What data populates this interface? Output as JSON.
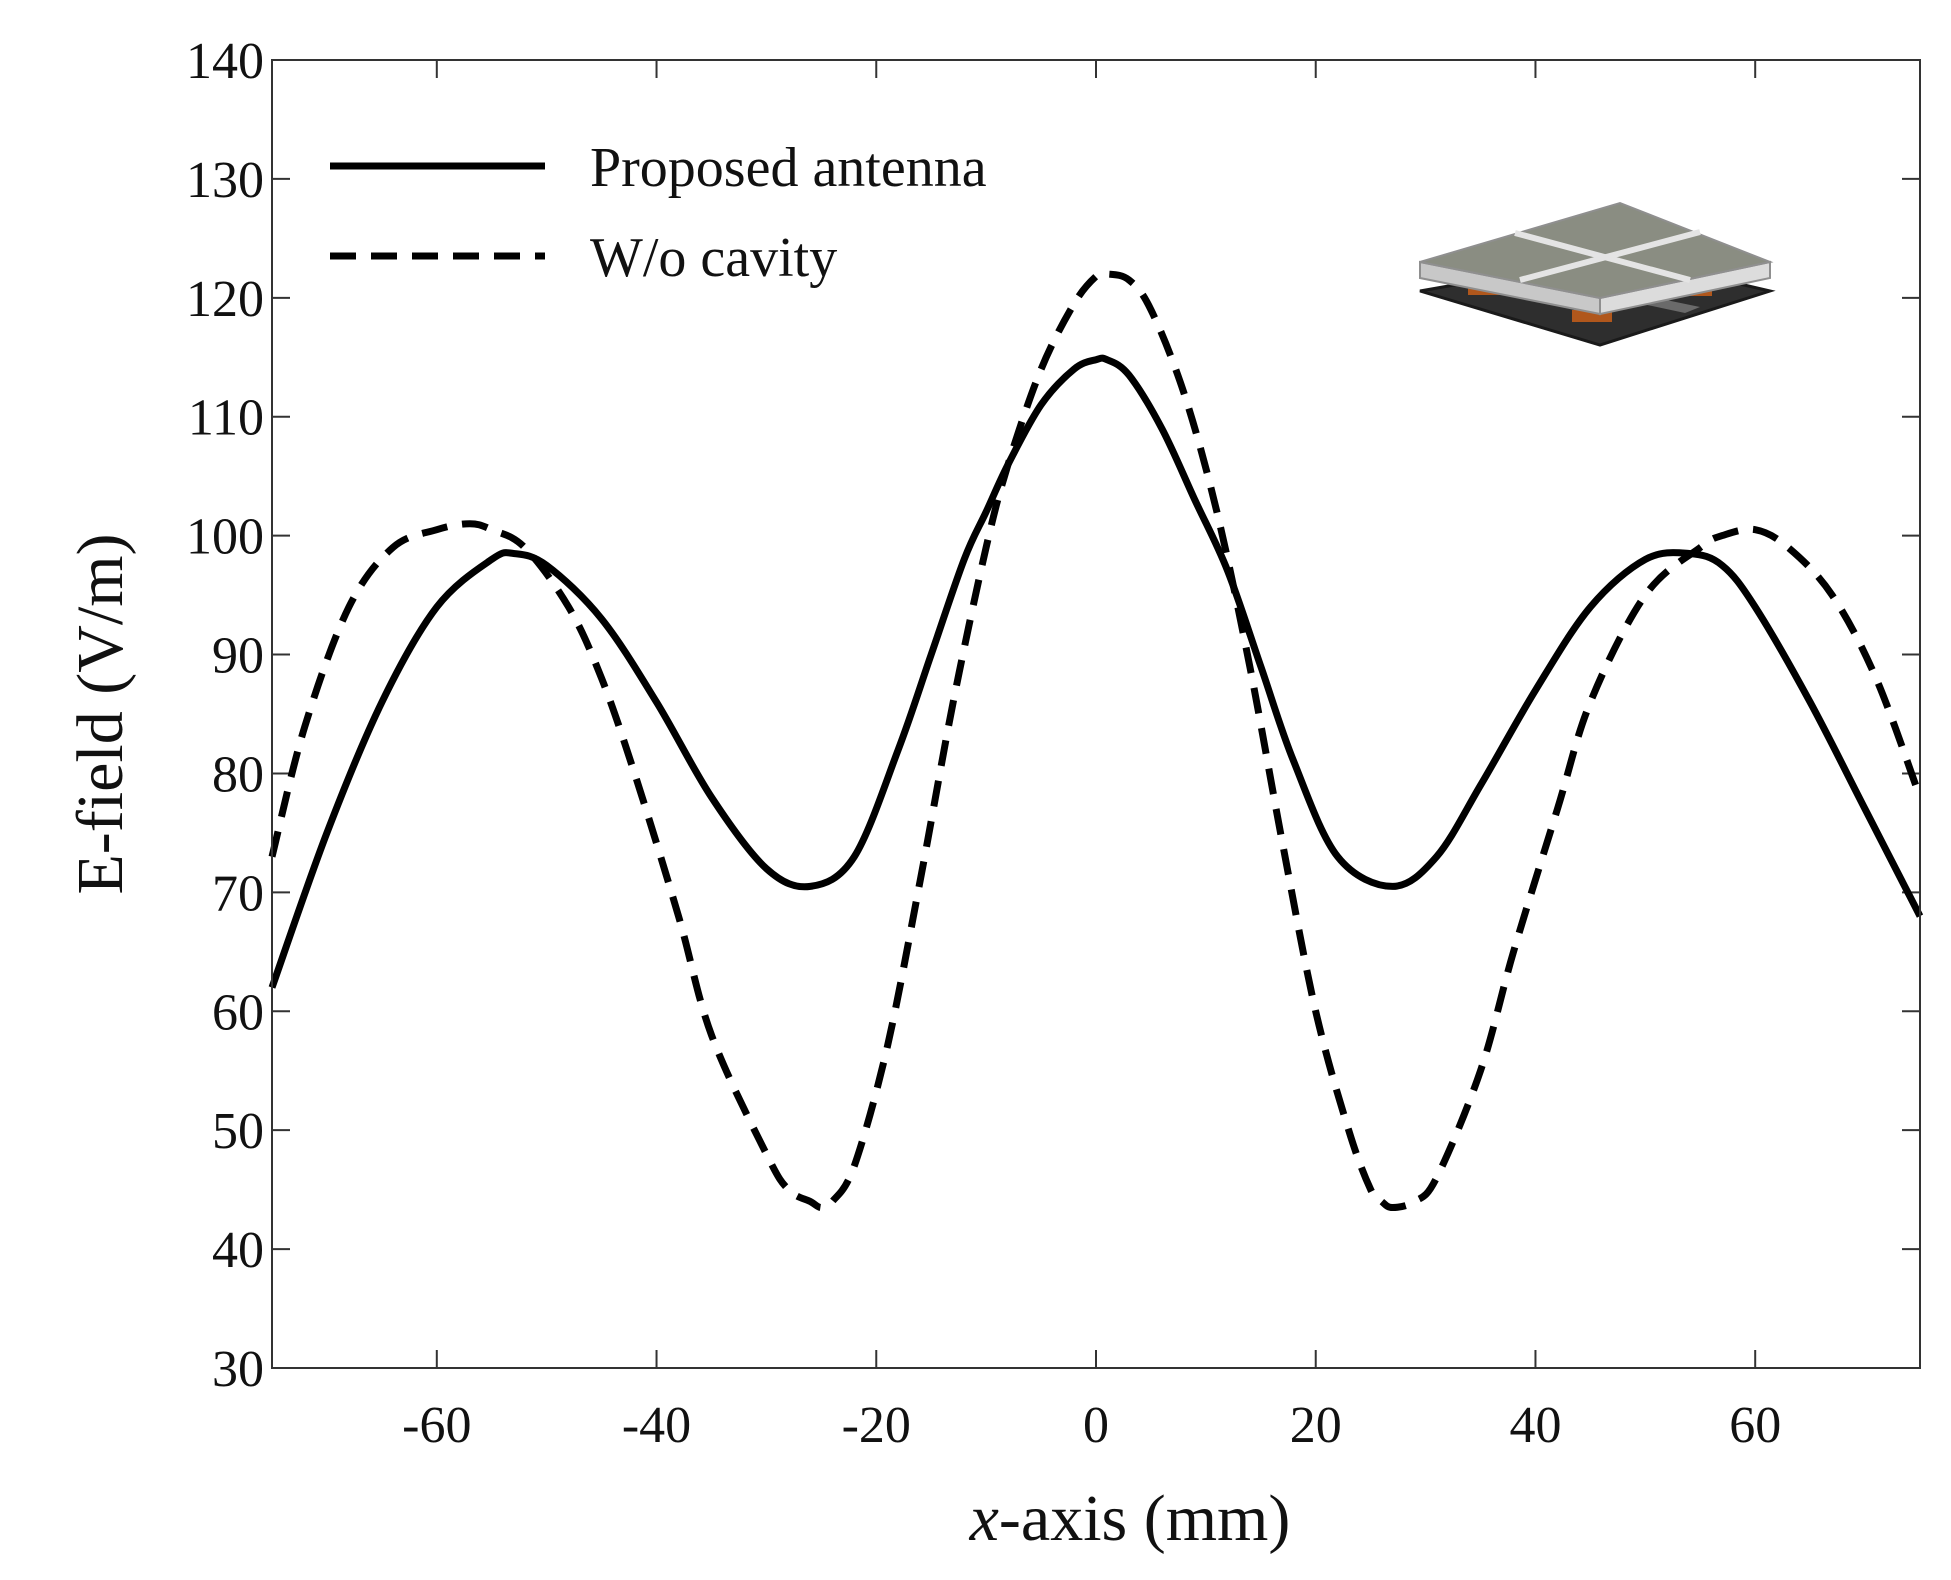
{
  "chart_data": {
    "type": "line",
    "title": "",
    "xlabel_prefix": "x",
    "xlabel_suffix": "-axis (mm)",
    "ylabel": "E-field (V/m)",
    "xlim": [
      -75,
      75
    ],
    "ylim": [
      30,
      140
    ],
    "xticks": [
      -60,
      -40,
      -20,
      0,
      20,
      40,
      60
    ],
    "yticks": [
      30,
      40,
      50,
      60,
      70,
      80,
      90,
      100,
      110,
      120,
      130,
      140
    ],
    "grid": false,
    "legend_position": "top-left",
    "series": [
      {
        "name": "Proposed antenna",
        "style": "solid",
        "color": "#000000",
        "x": [
          -75,
          -70,
          -65,
          -60,
          -55,
          -53,
          -50,
          -45,
          -40,
          -35,
          -30,
          -26,
          -22,
          -18,
          -15,
          -12,
          -10,
          -8,
          -5,
          -2,
          0,
          1,
          3,
          6,
          9,
          12,
          15,
          18,
          22,
          27,
          31,
          35,
          40,
          45,
          50,
          54,
          57,
          60,
          65,
          70,
          75
        ],
        "y": [
          62,
          75,
          86,
          94,
          98,
          98.5,
          97.5,
          93,
          86,
          78,
          72,
          70.5,
          73,
          82,
          90,
          98,
          102,
          106,
          111,
          114,
          114.8,
          114.8,
          113.5,
          109,
          103,
          97,
          89,
          81,
          73,
          70.5,
          73,
          79,
          87,
          94,
          98,
          98.5,
          97.5,
          94,
          86,
          77,
          68
        ]
      },
      {
        "name": "W/o cavity",
        "style": "dashed",
        "color": "#000000",
        "x": [
          -75,
          -72,
          -68,
          -64,
          -60,
          -57,
          -55,
          -52,
          -48,
          -45,
          -42,
          -38,
          -35,
          -30,
          -28,
          -26,
          -25,
          -24,
          -22,
          -19,
          -16,
          -13,
          -10,
          -8,
          -5,
          -2,
          0,
          1,
          3,
          5,
          8,
          11,
          14,
          17,
          20,
          23,
          25,
          26,
          27,
          29,
          31,
          35,
          38,
          42,
          45,
          50,
          55,
          57,
          60,
          63,
          67,
          71,
          75
        ],
        "y": [
          73,
          84,
          94,
          99,
          100.5,
          101,
          100.5,
          99,
          94,
          88,
          80,
          68,
          58,
          48,
          45,
          44,
          43.5,
          44,
          47,
          57,
          71,
          86,
          99,
          106,
          114,
          119.5,
          121.8,
          122,
          121.5,
          119,
          112,
          102,
          89,
          74,
          60,
          50,
          45,
          44,
          43.5,
          44,
          46,
          55,
          65,
          77,
          86,
          95,
          99,
          100,
          100.5,
          99,
          95,
          88,
          78
        ]
      }
    ]
  }
}
